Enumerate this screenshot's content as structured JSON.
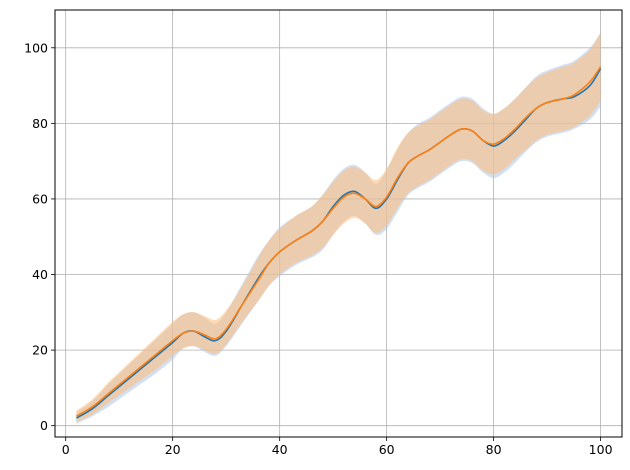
{
  "chart_data": {
    "type": "line",
    "title": "",
    "xlabel": "",
    "ylabel": "",
    "xlim": [
      -2,
      104
    ],
    "ylim": [
      -3,
      110
    ],
    "x_ticks": [
      0,
      20,
      40,
      60,
      80,
      100
    ],
    "y_ticks": [
      0,
      20,
      40,
      60,
      80,
      100
    ],
    "grid": true,
    "legend": "none",
    "series": [
      {
        "color": "#1f77b4",
        "band_color": "#aec7e8",
        "x": [
          2,
          5,
          8,
          11,
          14,
          17,
          20,
          22,
          24,
          26,
          28,
          30,
          33,
          36,
          38,
          40,
          43,
          46,
          48,
          50,
          52,
          54,
          56,
          58,
          60,
          62,
          64,
          66,
          68,
          70,
          72,
          74,
          76,
          78,
          80,
          82,
          84,
          86,
          88,
          90,
          93,
          95,
          98,
          100
        ],
        "y": [
          2,
          4.5,
          8,
          11.5,
          15,
          18.5,
          22,
          24.5,
          25,
          23.5,
          22.5,
          25,
          32,
          39,
          43,
          46,
          49,
          51.5,
          54,
          58,
          61,
          62,
          60,
          57.5,
          60,
          65,
          69.5,
          71.5,
          73,
          75,
          77,
          78.5,
          78,
          75.5,
          74,
          75.5,
          78,
          81,
          84,
          85.5,
          86.5,
          87,
          90,
          94.5
        ],
        "low": [
          0.5,
          2.5,
          5,
          8,
          11,
          14,
          17.5,
          20.5,
          21,
          19.5,
          18.5,
          21,
          27,
          33,
          37,
          39.5,
          42.5,
          44.5,
          46.5,
          50.5,
          54,
          55.5,
          53.5,
          50.5,
          52,
          56.5,
          61,
          63,
          64.5,
          66.5,
          68.5,
          70,
          69.5,
          67,
          65.5,
          67,
          69.5,
          72.5,
          75,
          76.5,
          77.5,
          78.5,
          81,
          84.5
        ],
        "high": [
          3.5,
          6.5,
          11,
          15,
          19,
          23,
          27,
          29.5,
          30,
          28.5,
          27,
          30,
          37.5,
          45,
          49,
          52.5,
          55.5,
          58,
          61,
          65,
          68,
          69,
          67,
          64,
          67.5,
          73,
          77.5,
          80,
          81.5,
          83.5,
          85.5,
          87,
          86.5,
          84,
          82.5,
          84,
          86.5,
          89.5,
          92.5,
          94,
          95.5,
          96.5,
          100,
          104
        ]
      },
      {
        "color": "#ff7f0e",
        "band_color": "#ffbb78",
        "x": [
          2,
          5,
          8,
          11,
          14,
          17,
          20,
          22,
          24,
          26,
          28,
          30,
          33,
          36,
          38,
          40,
          43,
          46,
          48,
          50,
          52,
          54,
          56,
          58,
          60,
          62,
          64,
          66,
          68,
          70,
          72,
          74,
          76,
          78,
          80,
          82,
          84,
          86,
          88,
          90,
          93,
          95,
          98,
          100
        ],
        "y": [
          2.5,
          5,
          8.5,
          12,
          15.5,
          19,
          22.5,
          24.5,
          25,
          24,
          23,
          25.5,
          32,
          38.5,
          43,
          46,
          49,
          51.5,
          54,
          57.5,
          60.5,
          61.5,
          60,
          58,
          60.5,
          65.5,
          69.5,
          71.5,
          73,
          75,
          77,
          78.5,
          78,
          75.5,
          74.5,
          76,
          78.5,
          81.5,
          84,
          85.5,
          86.5,
          87.5,
          91,
          95
        ],
        "low": [
          1,
          3,
          6,
          9,
          12,
          15,
          18.5,
          20.5,
          21,
          20,
          19,
          21.5,
          27.5,
          33,
          37,
          40,
          43,
          45,
          47,
          50.5,
          53.5,
          55,
          53.5,
          51,
          53,
          57.5,
          61.5,
          63.5,
          65,
          67,
          69,
          70.5,
          70,
          67.5,
          66.5,
          68,
          70.5,
          73,
          75.5,
          77,
          78,
          79,
          82,
          86
        ],
        "high": [
          4,
          7,
          11.5,
          15.5,
          19.5,
          23.5,
          27.5,
          29.5,
          30,
          29,
          28,
          30.5,
          37,
          44.5,
          49,
          52,
          55.5,
          58,
          61,
          64.5,
          67.5,
          68.5,
          67,
          65,
          68,
          73.5,
          77.5,
          79.5,
          81,
          83,
          85,
          86.5,
          86,
          83.5,
          82.5,
          84,
          86.5,
          89.5,
          92,
          93.5,
          95,
          96,
          99.5,
          104
        ]
      }
    ]
  }
}
